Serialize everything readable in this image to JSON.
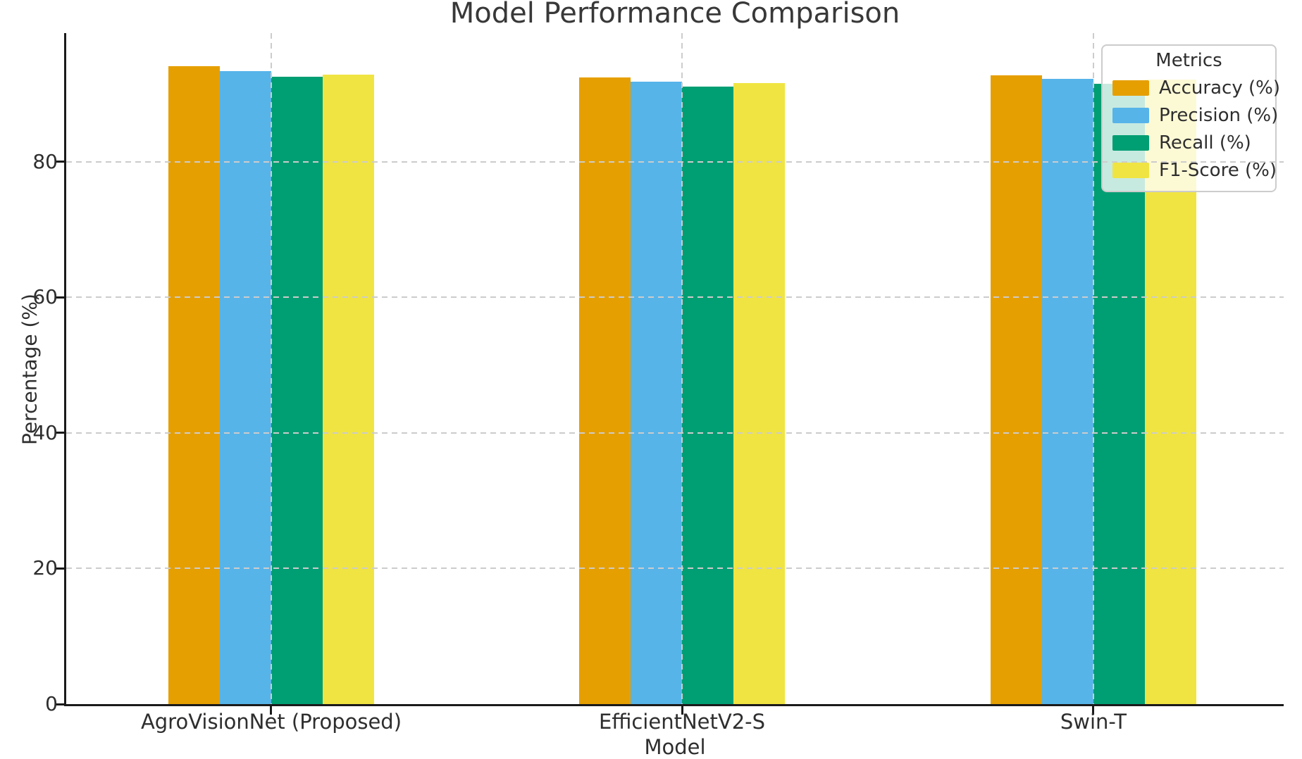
{
  "chart_data": {
    "type": "bar",
    "title": "Model Performance Comparison",
    "xlabel": "Model",
    "ylabel": "Percentage (%)",
    "legend_title": "Metrics",
    "legend_position": "upper right",
    "categories": [
      "AgroVisionNet (Proposed)",
      "EfficientNetV2-S",
      "Swin-T"
    ],
    "series": [
      {
        "name": "Accuracy (%)",
        "color": "#E69F00",
        "values": [
          94.1,
          92.5,
          92.8
        ]
      },
      {
        "name": "Precision (%)",
        "color": "#56B4E9",
        "values": [
          93.4,
          91.8,
          92.2
        ]
      },
      {
        "name": "Recall (%)",
        "color": "#009E73",
        "values": [
          92.6,
          91.1,
          91.5
        ]
      },
      {
        "name": "F1-Score (%)",
        "color": "#F0E442",
        "values": [
          92.9,
          91.6,
          92.1
        ]
      }
    ],
    "yticks": [
      0,
      20,
      40,
      60,
      80
    ],
    "ylim": [
      0,
      99
    ],
    "grid": "dashed horizontal at yticks and dashed vertical at category centers",
    "axis_color": "#1a1a1a",
    "grid_color": "#cccccc",
    "text_color": "#2e2e2e"
  }
}
